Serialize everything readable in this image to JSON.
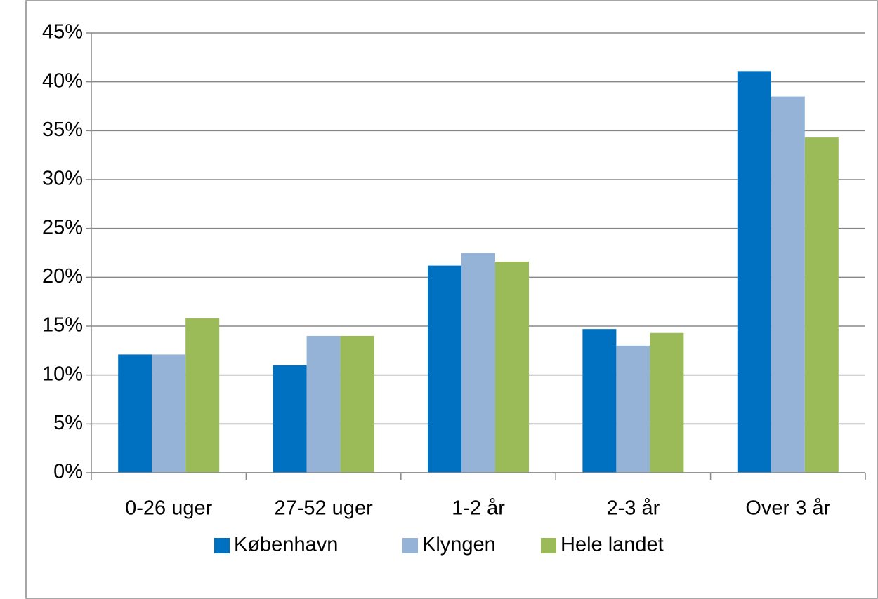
{
  "chart_data": {
    "type": "bar",
    "categories": [
      "0-26 uger",
      "27-52 uger",
      "1-2 år",
      "2-3 år",
      "Over 3 år"
    ],
    "series": [
      {
        "name": "København",
        "color": "#0070c0",
        "values": [
          12.1,
          11.0,
          21.2,
          14.7,
          41.1
        ]
      },
      {
        "name": "Klyngen",
        "color": "#95b3d7",
        "values": [
          12.1,
          14.0,
          22.5,
          13.0,
          38.5
        ]
      },
      {
        "name": "Hele landet",
        "color": "#9bbb59",
        "values": [
          15.8,
          14.0,
          21.6,
          14.3,
          34.3
        ]
      }
    ],
    "ylim": [
      0,
      45
    ],
    "yticks": [
      {
        "value": 0,
        "label": "0%"
      },
      {
        "value": 5,
        "label": "5%"
      },
      {
        "value": 10,
        "label": "10%"
      },
      {
        "value": 15,
        "label": "15%"
      },
      {
        "value": 20,
        "label": "20%"
      },
      {
        "value": 25,
        "label": "25%"
      },
      {
        "value": 30,
        "label": "30%"
      },
      {
        "value": 35,
        "label": "35%"
      },
      {
        "value": 40,
        "label": "40%"
      },
      {
        "value": 45,
        "label": "45%"
      }
    ],
    "grid": true,
    "legend": "bottom"
  }
}
